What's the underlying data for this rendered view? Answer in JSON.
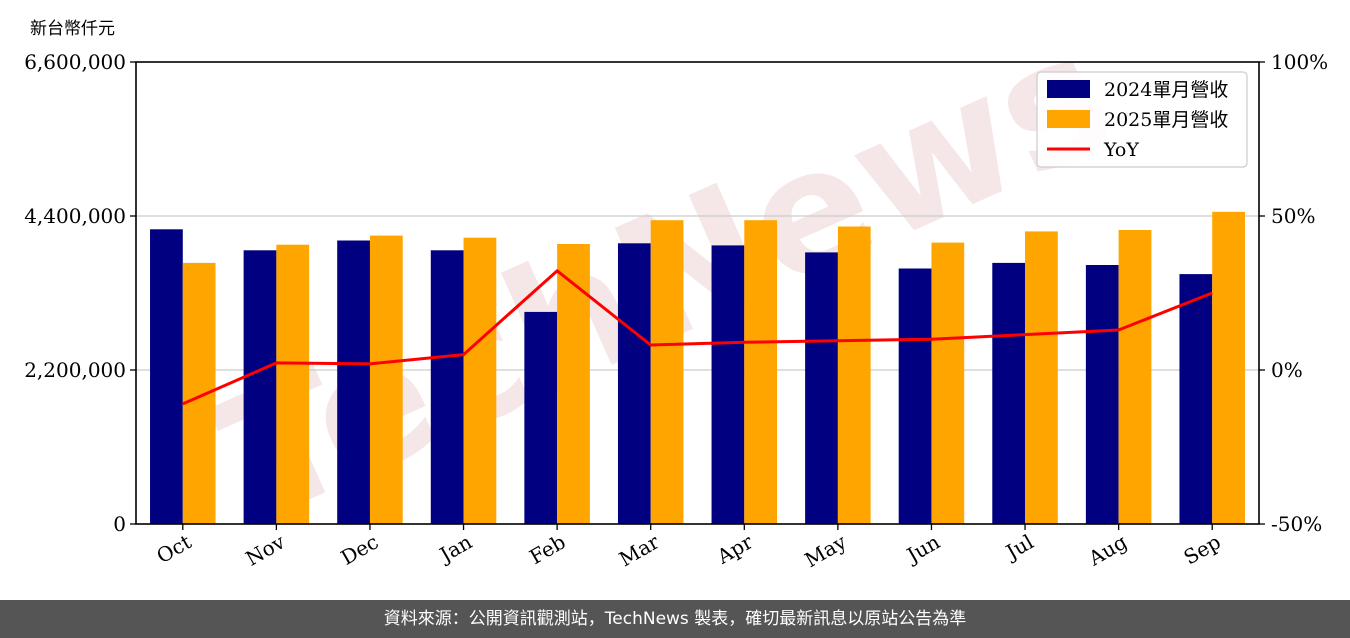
{
  "chart_data": {
    "type": "bar",
    "ylabel": "新台幣仟元",
    "categories": [
      "Oct",
      "Nov",
      "Dec",
      "Jan",
      "Feb",
      "Mar",
      "Apr",
      "May",
      "Jun",
      "Jul",
      "Aug",
      "Sep"
    ],
    "series": [
      {
        "name": "2024單月營收",
        "type": "bar",
        "axis": "left",
        "color": "#000080",
        "values": [
          4210000,
          3910000,
          4050000,
          3910000,
          3030000,
          4010000,
          3980000,
          3880000,
          3650000,
          3730000,
          3700000,
          3570000
        ]
      },
      {
        "name": "2025單月營收",
        "type": "bar",
        "axis": "left",
        "color": "#FFA500",
        "values": [
          3730000,
          3990000,
          4120000,
          4090000,
          4000000,
          4340000,
          4340000,
          4250000,
          4020000,
          4180000,
          4200000,
          4460000
        ]
      },
      {
        "name": "YoY",
        "type": "line",
        "axis": "right",
        "color": "#FF0000",
        "values": [
          -11.0,
          2.3,
          2.0,
          5.0,
          32.2,
          8.1,
          9.0,
          9.5,
          10.0,
          11.5,
          13.0,
          25.0
        ]
      }
    ],
    "ylim": [
      0,
      6600000
    ],
    "yticks": [
      "0",
      "2,200,000",
      "4,400,000",
      "6,600,000"
    ],
    "y2lim": [
      -50,
      100
    ],
    "y2ticks": [
      "-50%",
      "0%",
      "50%",
      "100%"
    ],
    "grid": "horizontal",
    "legend_position": "top-right"
  },
  "watermark": "TechNews",
  "footer": {
    "text": "資料來源：公開資訊觀測站，TechNews 製表，確切最新訊息以原站公告為準"
  }
}
